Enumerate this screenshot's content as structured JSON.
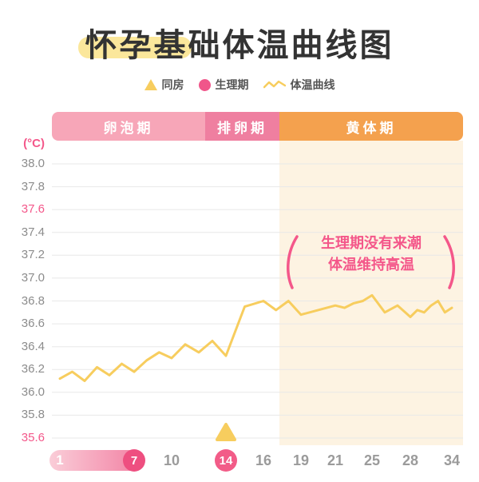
{
  "title": "怀孕基础体温曲线图",
  "legend": [
    {
      "label": "同房",
      "icon": "triangle-icon"
    },
    {
      "label": "生理期",
      "icon": "circle-icon"
    },
    {
      "label": "体温曲线",
      "icon": "zigzag-line-icon"
    }
  ],
  "phases": [
    {
      "label": "卵泡期",
      "color": "#F7A6B8",
      "day_start": 1,
      "day_end": 12
    },
    {
      "label": "排卵期",
      "color": "#EF7FA0",
      "day_start": 13,
      "day_end": 16
    },
    {
      "label": "黄体期",
      "color": "#F4A14E",
      "day_start": 17,
      "day_end": 34
    }
  ],
  "unit_label": "(°C)",
  "annotation": {
    "line1": "生理期没有来潮",
    "line2": "体温维持高温"
  },
  "colors": {
    "accent_pink": "#F4578A",
    "period_circle": "#EE4F80",
    "ovulation_circle": "#F25C88",
    "curve_yellow": "#F7CD5E",
    "luteal_bg": "#FDF3E2",
    "gridline": "#E8E8E8",
    "title_text": "#333333",
    "highlight_yellow": "#FBE79B",
    "gray_label": "#9B9B9B"
  },
  "chart_data": {
    "type": "line",
    "title": "怀孕基础体温曲线图",
    "xlabel": "",
    "ylabel": "(°C)",
    "ylim": [
      35.6,
      38.0
    ],
    "y_ticks": [
      38.0,
      37.8,
      37.6,
      37.4,
      37.2,
      37.0,
      36.8,
      36.6,
      36.4,
      36.2,
      36.0,
      35.8,
      35.6
    ],
    "y_ticks_highlighted": [
      37.6,
      35.6
    ],
    "x_tick_days": [
      1,
      7,
      10,
      14,
      16,
      19,
      21,
      25,
      28,
      34
    ],
    "grid": "horizontal-only",
    "legend_position": "top",
    "period_range": {
      "start_day": 1,
      "end_day": 7
    },
    "ovulation_day": 14,
    "markers": [
      {
        "type": "intercourse",
        "label": "同房",
        "day": 14
      }
    ],
    "annotation": "生理期没有来潮 体温维持高温",
    "series": [
      {
        "name": "体温曲线",
        "days": [
          1,
          2,
          3,
          4,
          5,
          6,
          7,
          8,
          9,
          10,
          11,
          12,
          13,
          14,
          15,
          16,
          17,
          18,
          19,
          20,
          21,
          22,
          23,
          24,
          25,
          26,
          27,
          28,
          29,
          30,
          31,
          32,
          33,
          34
        ],
        "values": [
          36.12,
          36.18,
          36.1,
          36.22,
          36.15,
          36.25,
          36.18,
          36.28,
          36.35,
          36.3,
          36.42,
          36.35,
          36.45,
          36.32,
          36.75,
          36.8,
          36.72,
          36.8,
          36.68,
          36.72,
          36.76,
          36.74,
          36.78,
          36.8,
          36.85,
          36.7,
          36.76,
          36.66,
          36.72,
          36.7,
          36.76,
          36.8,
          36.7,
          36.74
        ]
      }
    ]
  }
}
